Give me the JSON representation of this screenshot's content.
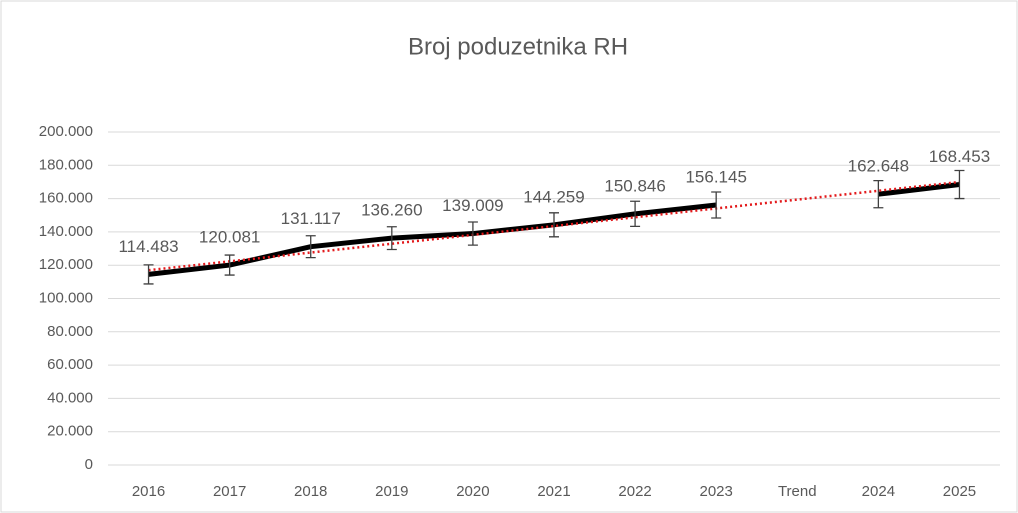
{
  "chart_data": {
    "type": "line",
    "title": "Broj poduzetnika RH",
    "categories": [
      "2016",
      "2017",
      "2018",
      "2019",
      "2020",
      "2021",
      "2022",
      "2023",
      "Trend",
      "2024",
      "2025"
    ],
    "series": [
      {
        "color": "#000000",
        "values": [
          114483,
          120081,
          131117,
          136260,
          139009,
          144259,
          150846,
          156145,
          null,
          162648,
          168453
        ],
        "value_labels": [
          "114.483",
          "120.081",
          "131.117",
          "136.260",
          "139.009",
          "144.259",
          "150.846",
          "156.145",
          null,
          "162.648",
          "168.453"
        ],
        "errors": [
          5724,
          6004,
          6556,
          6813,
          6950,
          7213,
          7542,
          7807,
          null,
          8132,
          8423
        ]
      }
    ],
    "trendline": {
      "color": "#e31a1c",
      "values": [
        117000,
        122300,
        127600,
        132900,
        138200,
        143500,
        148800,
        154100,
        159400,
        164700,
        170000
      ]
    },
    "ylim": [
      0,
      200000
    ],
    "yticks": [
      0,
      {
        "value": 20000,
        "label": "20.000"
      },
      {
        "value": 40000,
        "label": "40.000"
      },
      {
        "value": 60000,
        "label": "60.000"
      },
      {
        "value": 80000,
        "label": "80.000"
      },
      {
        "value": 100000,
        "label": "100.000"
      },
      {
        "value": 120000,
        "label": "120.000"
      },
      {
        "value": 140000,
        "label": "140.000"
      },
      {
        "value": 160000,
        "label": "160.000"
      },
      {
        "value": 180000,
        "label": "180.000"
      },
      {
        "value": 200000,
        "label": "200.000"
      }
    ],
    "grid": true
  }
}
